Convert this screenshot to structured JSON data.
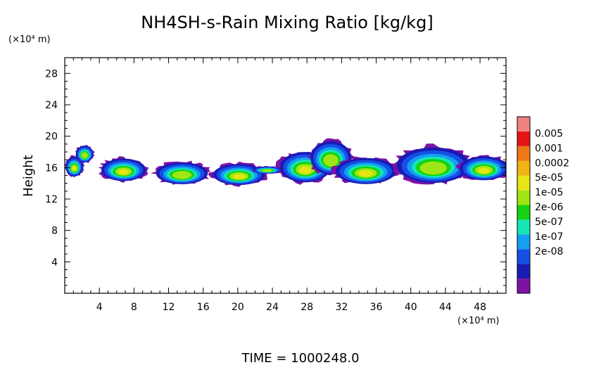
{
  "chart_data": {
    "type": "heatmap",
    "title": "NH4SH-s-Rain Mixing Ratio [kg/kg]",
    "ylabel": "Height",
    "x_unit": "(×10⁴ m)",
    "y_unit": "(×10⁴ m)",
    "xlim": [
      0,
      51
    ],
    "ylim": [
      0,
      30
    ],
    "x_ticks": [
      "4",
      "8",
      "12",
      "16",
      "20",
      "24",
      "28",
      "32",
      "36",
      "40",
      "44",
      "48"
    ],
    "y_ticks": [
      "4",
      "8",
      "12",
      "16",
      "20",
      "24",
      "28"
    ],
    "legend": {
      "placement": "right",
      "labels": [
        "0.005",
        "0.001",
        "0.0002",
        "5e-05",
        "1e-05",
        "2e-06",
        "5e-07",
        "1e-07",
        "2e-08"
      ],
      "colors": [
        "#7e12a6",
        "#1a1ab4",
        "#1450e6",
        "#14a0f0",
        "#14e6b4",
        "#14d214",
        "#a0e614",
        "#e6e614",
        "#f0b414",
        "#f07814",
        "#e61414",
        "#f08282"
      ]
    },
    "footer": "TIME = 1000248.0"
  }
}
